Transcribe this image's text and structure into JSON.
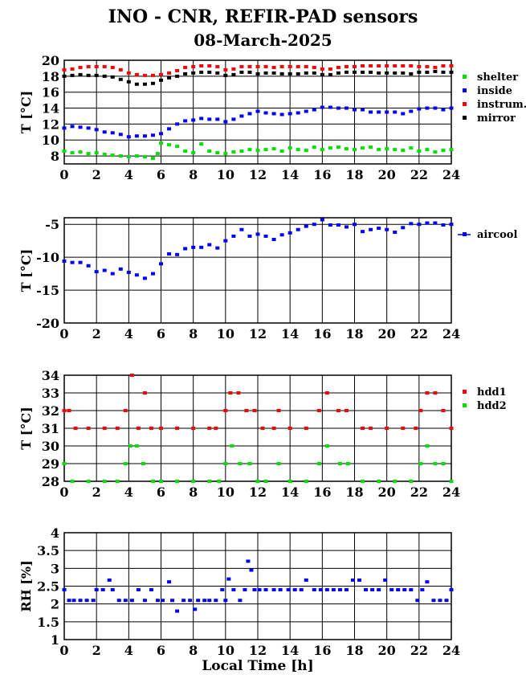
{
  "title": "INO - CNR, REFIR-PAD sensors",
  "subtitle": "08-March-2025",
  "xlabel": "Local Time [h]",
  "chart_data": [
    {
      "type": "scatter",
      "ylabel": "T [°C]",
      "xlim": [
        0,
        24
      ],
      "ylim": [
        7,
        20
      ],
      "yticks": [
        8,
        10,
        12,
        14,
        16,
        18,
        20
      ],
      "xticks": [
        0,
        2,
        4,
        6,
        8,
        10,
        12,
        14,
        16,
        18,
        20,
        22,
        24
      ],
      "grid": true,
      "legend": "right",
      "series": [
        {
          "name": "shelter",
          "color": "#00e000",
          "x": [
            0,
            0.5,
            1,
            1.5,
            2,
            2.5,
            3,
            3.5,
            4,
            4.5,
            5,
            5.5,
            5.8,
            6,
            6.5,
            7,
            7.5,
            8,
            8.5,
            9,
            9.5,
            10,
            10.5,
            11,
            11.5,
            12,
            12.5,
            13,
            13.5,
            14,
            14.5,
            15,
            15.5,
            16,
            16.5,
            17,
            17.5,
            18,
            18.5,
            19,
            19.5,
            20,
            20.5,
            21,
            21.5,
            22,
            22.5,
            23,
            23.5,
            24
          ],
          "y": [
            8.6,
            8.4,
            8.5,
            8.3,
            8.4,
            8.2,
            8.1,
            8.0,
            7.9,
            8.0,
            7.9,
            7.7,
            8.3,
            9.6,
            9.4,
            9.2,
            8.6,
            8.4,
            9.5,
            8.6,
            8.4,
            8.3,
            8.5,
            8.6,
            8.8,
            8.7,
            8.8,
            8.9,
            8.6,
            9.0,
            8.8,
            8.7,
            9.1,
            8.8,
            9.0,
            9.1,
            8.9,
            8.8,
            9.0,
            9.1,
            8.8,
            8.9,
            8.8,
            8.7,
            9.0,
            8.6,
            8.8,
            8.5,
            8.7,
            8.8
          ]
        },
        {
          "name": "inside",
          "color": "#0000ff",
          "x": [
            0,
            0.5,
            1,
            1.5,
            2,
            2.5,
            3,
            3.5,
            4,
            4.5,
            5,
            5.5,
            6,
            6.5,
            7,
            7.5,
            8,
            8.5,
            9,
            9.5,
            10,
            10.5,
            11,
            11.5,
            12,
            12.5,
            13,
            13.5,
            14,
            14.5,
            15,
            15.5,
            16,
            16.5,
            17,
            17.5,
            18,
            18.5,
            19,
            19.5,
            20,
            20.5,
            21,
            21.5,
            22,
            22.5,
            23,
            23.5,
            24
          ],
          "y": [
            11.5,
            11.7,
            11.6,
            11.5,
            11.3,
            11.0,
            10.9,
            10.7,
            10.4,
            10.5,
            10.5,
            10.6,
            10.8,
            11.4,
            12.0,
            12.4,
            12.5,
            12.7,
            12.6,
            12.6,
            12.3,
            12.6,
            13.0,
            13.3,
            13.6,
            13.4,
            13.3,
            13.2,
            13.3,
            13.4,
            13.6,
            13.8,
            14.1,
            14.1,
            14.0,
            14.0,
            13.8,
            13.8,
            13.5,
            13.5,
            13.5,
            13.5,
            13.3,
            13.6,
            13.9,
            14.0,
            14.0,
            13.8,
            14.0
          ]
        },
        {
          "name": "instrum.",
          "color": "#ff0000",
          "x": [
            0,
            0.5,
            1,
            1.5,
            2,
            2.5,
            3,
            3.5,
            4,
            4.5,
            5,
            5.5,
            6,
            6.5,
            7,
            7.5,
            8,
            8.5,
            9,
            9.5,
            10,
            10.5,
            11,
            11.5,
            12,
            12.5,
            13,
            13.5,
            14,
            14.5,
            15,
            15.5,
            16,
            16.5,
            17,
            17.5,
            18,
            18.5,
            19,
            19.5,
            20,
            20.5,
            21,
            21.5,
            22,
            22.5,
            23,
            23.5,
            24
          ],
          "y": [
            18.8,
            18.9,
            19.1,
            19.2,
            19.2,
            19.2,
            19.1,
            18.8,
            18.4,
            18.2,
            18.1,
            18.1,
            18.2,
            18.4,
            18.7,
            19.1,
            19.2,
            19.3,
            19.3,
            19.2,
            18.8,
            18.9,
            19.2,
            19.2,
            19.2,
            19.2,
            19.1,
            19.2,
            19.2,
            19.2,
            19.2,
            19.1,
            18.9,
            18.9,
            19.1,
            19.2,
            19.2,
            19.3,
            19.3,
            19.3,
            19.3,
            19.3,
            19.3,
            19.3,
            19.2,
            19.2,
            19.1,
            19.3,
            19.3
          ]
        },
        {
          "name": "mirror",
          "color": "#000000",
          "x": [
            0,
            0.5,
            1,
            1.5,
            2,
            2.5,
            3,
            3.5,
            4,
            4.5,
            5,
            5.5,
            6,
            6.5,
            7,
            7.5,
            8,
            8.5,
            9,
            9.5,
            10,
            10.5,
            11,
            11.5,
            12,
            12.5,
            13,
            13.5,
            14,
            14.5,
            15,
            15.5,
            16,
            16.5,
            17,
            17.5,
            18,
            18.5,
            19,
            19.5,
            20,
            20.5,
            21,
            21.5,
            22,
            22.5,
            23,
            23.5,
            24
          ],
          "y": [
            18.0,
            18.1,
            18.2,
            18.1,
            18.1,
            18.0,
            17.9,
            17.6,
            17.3,
            17.0,
            17.0,
            17.1,
            17.5,
            17.8,
            18.0,
            18.3,
            18.4,
            18.5,
            18.5,
            18.4,
            18.1,
            18.2,
            18.5,
            18.5,
            18.3,
            18.4,
            18.4,
            18.3,
            18.3,
            18.3,
            18.4,
            18.4,
            18.2,
            18.2,
            18.4,
            18.5,
            18.5,
            18.5,
            18.5,
            18.4,
            18.4,
            18.4,
            18.4,
            18.3,
            18.5,
            18.5,
            18.6,
            18.5,
            18.5
          ]
        }
      ]
    },
    {
      "type": "scatter",
      "ylabel": "T [°C]",
      "xlim": [
        0,
        24
      ],
      "ylim": [
        -20,
        -4
      ],
      "yticks": [
        -20,
        -15,
        -10,
        -5
      ],
      "xticks": [
        0,
        2,
        4,
        6,
        8,
        10,
        12,
        14,
        16,
        18,
        20,
        22,
        24
      ],
      "grid": true,
      "legend": "right",
      "series": [
        {
          "name": "aircool",
          "color": "#0000ff",
          "x": [
            0,
            0.5,
            1,
            1.5,
            2,
            2.5,
            3,
            3.5,
            4,
            4.5,
            5,
            5.5,
            6,
            6.5,
            7,
            7.5,
            8,
            8.5,
            9,
            9.5,
            10,
            10.5,
            11,
            11.5,
            12,
            12.5,
            13,
            13.5,
            14,
            14.5,
            15,
            15.5,
            16,
            16.5,
            17,
            17.5,
            18,
            18.5,
            19,
            19.5,
            20,
            20.5,
            21,
            21.5,
            22,
            22.5,
            23,
            23.5,
            24
          ],
          "y": [
            -10.6,
            -10.8,
            -10.8,
            -11.3,
            -12.2,
            -12.0,
            -12.5,
            -11.8,
            -12.3,
            -12.7,
            -13.2,
            -12.5,
            -11.0,
            -9.5,
            -9.6,
            -8.7,
            -8.5,
            -8.5,
            -8.1,
            -8.6,
            -7.5,
            -6.8,
            -5.8,
            -6.8,
            -6.5,
            -6.8,
            -7.3,
            -6.6,
            -6.3,
            -5.8,
            -5.3,
            -5.0,
            -4.3,
            -5.1,
            -5.1,
            -5.4,
            -5.0,
            -6.1,
            -5.8,
            -5.6,
            -5.8,
            -6.2,
            -5.5,
            -4.9,
            -5.0,
            -4.8,
            -4.8,
            -5.1,
            -5.0
          ]
        }
      ]
    },
    {
      "type": "scatter",
      "ylabel": "T [°C]",
      "xlim": [
        0,
        24
      ],
      "ylim": [
        28,
        34
      ],
      "yticks": [
        28,
        29,
        30,
        31,
        32,
        33,
        34
      ],
      "xticks": [
        0,
        2,
        4,
        6,
        8,
        10,
        12,
        14,
        16,
        18,
        20,
        22,
        24
      ],
      "grid": true,
      "legend": "right",
      "series": [
        {
          "name": "hdd1",
          "color": "#ff0000",
          "x": [
            0,
            0.3,
            0.7,
            1.5,
            2.5,
            3.3,
            3.8,
            4.2,
            4.6,
            5.0,
            5.4,
            6.0,
            7,
            8,
            9,
            9.4,
            10,
            10.3,
            10.8,
            11.3,
            11.8,
            12.3,
            13,
            13.3,
            14,
            15,
            15.8,
            16.3,
            17,
            17.5,
            18.5,
            19,
            20,
            21,
            21.8,
            22.1,
            22.5,
            23.0,
            23.5,
            24
          ],
          "y": [
            32,
            32,
            31,
            31,
            31,
            31,
            32,
            34,
            31,
            33,
            31,
            31,
            31,
            31,
            31,
            31,
            32,
            33,
            33,
            32,
            32,
            31,
            31,
            32,
            31,
            31,
            32,
            33,
            32,
            32,
            31,
            31,
            31,
            31,
            31,
            32,
            33,
            33,
            32,
            31
          ]
        },
        {
          "name": "hdd2",
          "color": "#00e000",
          "x": [
            0,
            0.5,
            1.5,
            2.5,
            3.3,
            3.8,
            4.1,
            4.5,
            4.9,
            5.5,
            6,
            7,
            8,
            9,
            9.6,
            10,
            10.4,
            10.9,
            11.5,
            12,
            12.5,
            13.3,
            14,
            15,
            15.8,
            16.3,
            17.1,
            17.6,
            18.5,
            19.5,
            20.5,
            21.5,
            22.1,
            22.5,
            23,
            23.5,
            24
          ],
          "y": [
            29,
            28,
            28,
            28,
            28,
            29,
            30,
            30,
            29,
            28,
            28,
            28,
            28,
            28,
            28,
            29,
            30,
            29,
            29,
            28,
            28,
            29,
            28,
            28,
            29,
            30,
            29,
            29,
            28,
            28,
            28,
            28,
            29,
            30,
            29,
            29,
            28
          ]
        }
      ]
    },
    {
      "type": "scatter",
      "ylabel": "RH [%]",
      "xlim": [
        0,
        24
      ],
      "ylim": [
        1,
        4
      ],
      "yticks": [
        1,
        1.5,
        2,
        2.5,
        3,
        3.5,
        4
      ],
      "xticks": [
        0,
        2,
        4,
        6,
        8,
        10,
        12,
        14,
        16,
        18,
        20,
        22,
        24
      ],
      "grid": true,
      "series": [
        {
          "name": "",
          "color": "#0000ff",
          "x": [
            0,
            0.3,
            0.6,
            1,
            1.4,
            1.8,
            2.0,
            2.4,
            2.8,
            3.0,
            3.4,
            3.8,
            4.2,
            4.6,
            5.0,
            5.4,
            5.8,
            6.1,
            6.5,
            6.7,
            7.0,
            7.4,
            7.8,
            8.1,
            8.3,
            8.7,
            9.0,
            9.4,
            9.8,
            10.0,
            10.2,
            10.5,
            10.9,
            11.2,
            11.4,
            11.6,
            11.8,
            12.1,
            12.5,
            13,
            13.4,
            13.9,
            14.3,
            14.7,
            15.0,
            15.5,
            15.9,
            16.3,
            16.7,
            17.1,
            17.5,
            17.9,
            18.3,
            18.7,
            19.1,
            19.5,
            19.9,
            20.3,
            20.7,
            21.1,
            21.5,
            21.9,
            22.2,
            22.5,
            22.9,
            23.3,
            23.7,
            24
          ],
          "y": [
            2.4,
            2.1,
            2.1,
            2.1,
            2.1,
            2.1,
            2.4,
            2.4,
            2.67,
            2.4,
            2.1,
            2.1,
            2.1,
            2.4,
            2.1,
            2.4,
            2.1,
            2.1,
            2.62,
            2.1,
            1.8,
            2.1,
            2.1,
            1.85,
            2.1,
            2.1,
            2.1,
            2.1,
            2.4,
            2.1,
            2.7,
            2.4,
            2.1,
            2.4,
            3.2,
            2.95,
            2.4,
            2.4,
            2.4,
            2.4,
            2.4,
            2.4,
            2.4,
            2.4,
            2.67,
            2.4,
            2.4,
            2.4,
            2.4,
            2.4,
            2.4,
            2.67,
            2.67,
            2.4,
            2.4,
            2.4,
            2.67,
            2.4,
            2.4,
            2.4,
            2.4,
            2.1,
            2.4,
            2.62,
            2.1,
            2.1,
            2.1,
            2.4
          ]
        }
      ]
    }
  ]
}
